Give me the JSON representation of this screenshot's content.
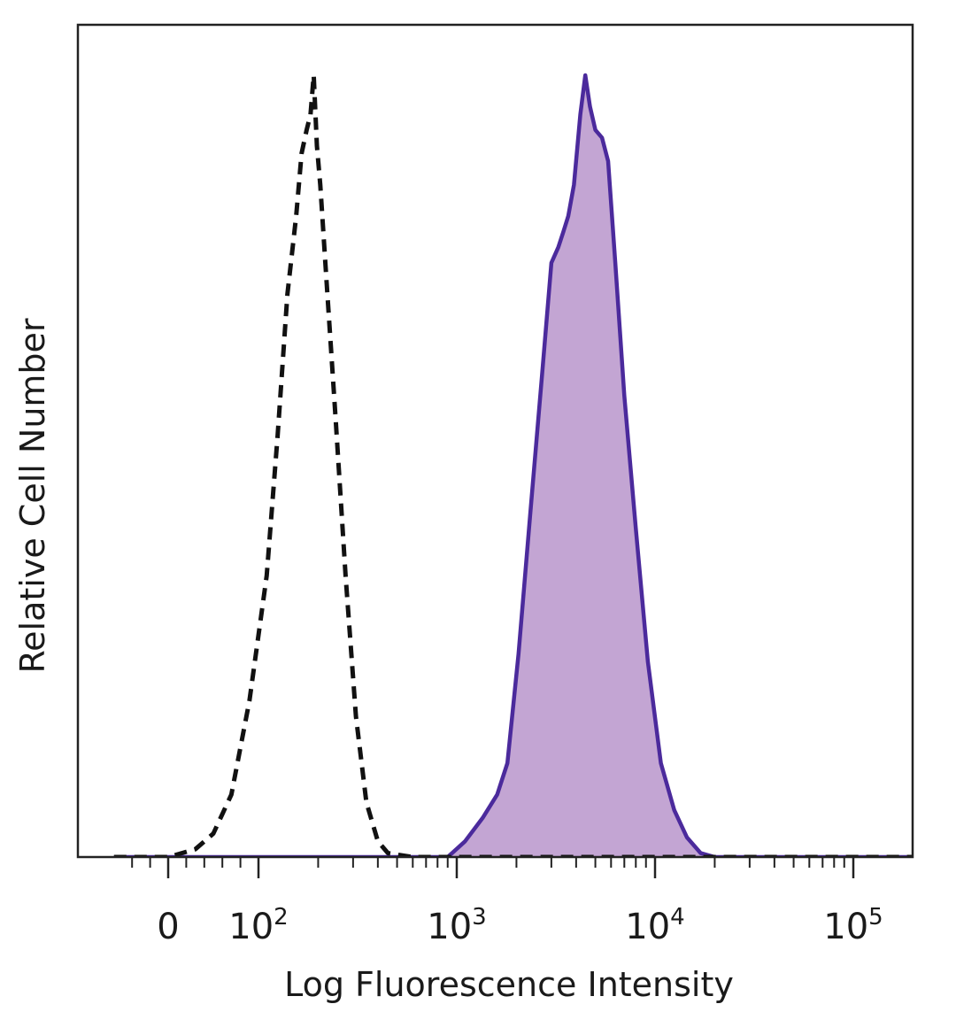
{
  "chart_data": {
    "type": "area",
    "xlabel": "Log Fluorescence Intensity",
    "ylabel": "Relative Cell Number",
    "x_scale": "biexponential (linear near 0, log above 10^2)",
    "xlim": [
      -60,
      250000
    ],
    "ylim": [
      0,
      1.0
    ],
    "grid": false,
    "x_ticks": [
      {
        "value": 0,
        "base": "0",
        "exp": ""
      },
      {
        "value": 100,
        "base": "10",
        "exp": "2"
      },
      {
        "value": 1000,
        "base": "10",
        "exp": "3"
      },
      {
        "value": 10000,
        "base": "10",
        "exp": "4"
      },
      {
        "value": 100000,
        "base": "10",
        "exp": "5"
      }
    ],
    "series": [
      {
        "style": "dashed",
        "color": "#111111",
        "fill": "none",
        "points": [
          [
            -60,
            0
          ],
          [
            -20,
            0
          ],
          [
            0,
            0
          ],
          [
            30,
            0.01
          ],
          [
            50,
            0.03
          ],
          [
            70,
            0.08
          ],
          [
            90,
            0.2
          ],
          [
            110,
            0.36
          ],
          [
            125,
            0.54
          ],
          [
            140,
            0.72
          ],
          [
            155,
            0.82
          ],
          [
            165,
            0.9
          ],
          [
            175,
            0.93
          ],
          [
            183,
            0.95
          ],
          [
            190,
            1.0
          ],
          [
            197,
            0.91
          ],
          [
            205,
            0.86
          ],
          [
            220,
            0.74
          ],
          [
            245,
            0.56
          ],
          [
            275,
            0.36
          ],
          [
            310,
            0.18
          ],
          [
            350,
            0.07
          ],
          [
            400,
            0.02
          ],
          [
            450,
            0.005
          ],
          [
            600,
            0
          ],
          [
            1000,
            0
          ],
          [
            250000,
            0
          ]
        ]
      },
      {
        "style": "solid",
        "color": "#4b2a9c",
        "fill": "#c3a5d3",
        "points": [
          [
            -60,
            0
          ],
          [
            900,
            0
          ],
          [
            1100,
            0.02
          ],
          [
            1350,
            0.05
          ],
          [
            1600,
            0.08
          ],
          [
            1800,
            0.12
          ],
          [
            2050,
            0.26
          ],
          [
            2350,
            0.44
          ],
          [
            2700,
            0.62
          ],
          [
            3000,
            0.76
          ],
          [
            3250,
            0.78
          ],
          [
            3450,
            0.8
          ],
          [
            3650,
            0.82
          ],
          [
            3900,
            0.86
          ],
          [
            4200,
            0.95
          ],
          [
            4450,
            1.0
          ],
          [
            4700,
            0.96
          ],
          [
            5000,
            0.93
          ],
          [
            5400,
            0.92
          ],
          [
            5800,
            0.89
          ],
          [
            6300,
            0.76
          ],
          [
            7000,
            0.59
          ],
          [
            8000,
            0.42
          ],
          [
            9200,
            0.25
          ],
          [
            10700,
            0.12
          ],
          [
            12500,
            0.06
          ],
          [
            14500,
            0.025
          ],
          [
            17000,
            0.005
          ],
          [
            20000,
            0
          ],
          [
            250000,
            0
          ]
        ]
      }
    ]
  },
  "colors": {
    "frame": "#222222",
    "isotype_line": "#111111",
    "stained_line": "#4b2a9c",
    "stained_fill": "#c3a5d3"
  }
}
